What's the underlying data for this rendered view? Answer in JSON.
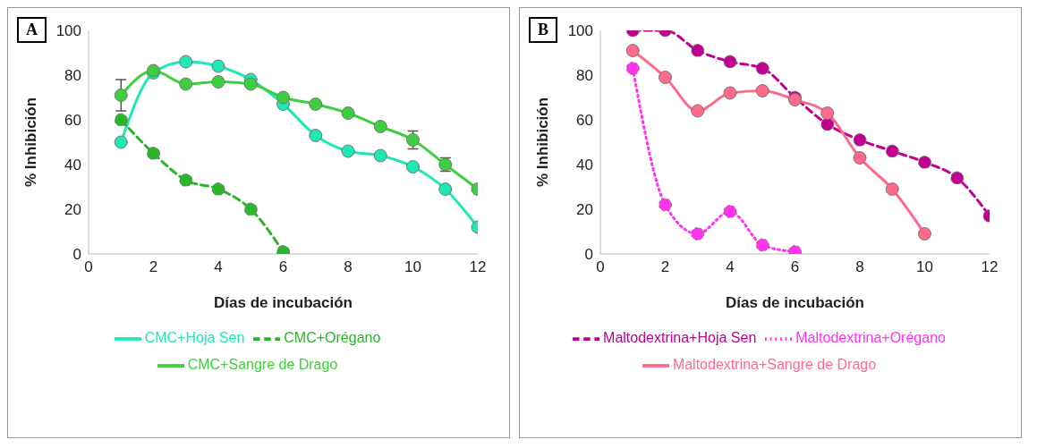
{
  "chart_data": [
    {
      "type": "line",
      "title": "A",
      "xlabel": "Días de incubación",
      "ylabel": "% Inhibición",
      "xlim": [
        0,
        12
      ],
      "xticks": [
        0,
        2,
        4,
        6,
        8,
        10,
        12
      ],
      "ylim": [
        0,
        100
      ],
      "yticks": [
        0,
        20,
        40,
        60,
        80,
        100
      ],
      "grid": false,
      "legend": "bottom",
      "marker": "circle",
      "series": [
        {
          "name": "CMC+Hoja Sen",
          "color": "#1ee8b4",
          "line_style": "solid",
          "x": [
            1,
            2,
            3,
            4,
            5,
            6,
            7,
            8,
            9,
            10,
            11,
            12
          ],
          "values": [
            50,
            81,
            86,
            84,
            78,
            67,
            53,
            46,
            44,
            39,
            29,
            12
          ]
        },
        {
          "name": "CMC+Orégano",
          "color": "#2ab52a",
          "line_style": "dashed",
          "x": [
            1,
            2,
            3,
            4,
            5,
            6
          ],
          "values": [
            60,
            45,
            33,
            29,
            20,
            1
          ]
        },
        {
          "name": "CMC+Sangre de Drago",
          "color": "#3ecf3e",
          "line_style": "solid",
          "x": [
            1,
            2,
            3,
            4,
            5,
            6,
            7,
            8,
            9,
            10,
            11,
            12
          ],
          "values": [
            71,
            82,
            76,
            77,
            76,
            70,
            67,
            63,
            57,
            51,
            40,
            29
          ],
          "errors": [
            7,
            null,
            null,
            null,
            null,
            null,
            null,
            null,
            null,
            4,
            3,
            null
          ]
        }
      ]
    },
    {
      "type": "line",
      "title": "B",
      "xlabel": "Días de incubación",
      "ylabel": "% Inhibición",
      "xlim": [
        0,
        12
      ],
      "xticks": [
        0,
        2,
        4,
        6,
        8,
        10,
        12
      ],
      "ylim": [
        0,
        100
      ],
      "yticks": [
        0,
        20,
        40,
        60,
        80,
        100
      ],
      "grid": false,
      "legend": "bottom",
      "marker": "circle",
      "series": [
        {
          "name": "Maltodextrina+Hoja Sen",
          "color": "#c0008f",
          "line_style": "dashed",
          "x": [
            1,
            2,
            3,
            4,
            5,
            6,
            7,
            8,
            9,
            10,
            11,
            12
          ],
          "values": [
            100,
            100,
            91,
            86,
            83,
            70,
            58,
            51,
            46,
            41,
            34,
            17
          ]
        },
        {
          "name": "Maltodextrina+Orégano",
          "color": "#ff33ee",
          "line_style": "dotted",
          "x": [
            1,
            2,
            3,
            4,
            5,
            6
          ],
          "values": [
            83,
            22,
            9,
            19,
            4,
            1
          ]
        },
        {
          "name": "Maltodextrina+Sangre de Drago",
          "color": "#ff6a8a",
          "line_style": "solid",
          "x": [
            1,
            2,
            3,
            4,
            5,
            6,
            7,
            8,
            9,
            10
          ],
          "values": [
            91,
            79,
            64,
            72,
            73,
            69,
            63,
            43,
            29,
            9
          ]
        }
      ]
    }
  ]
}
